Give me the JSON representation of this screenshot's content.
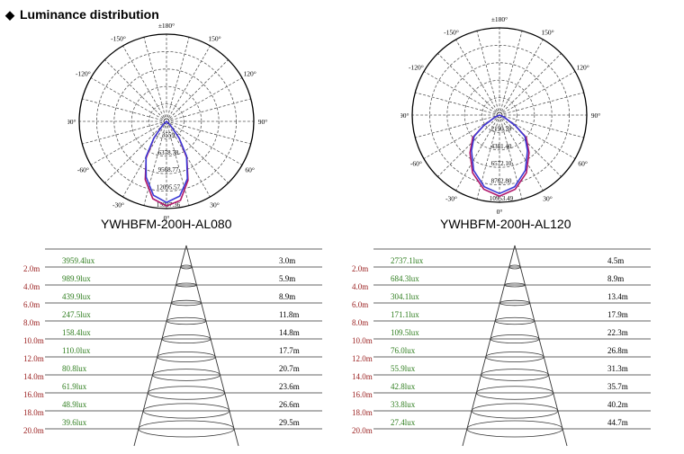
{
  "heading": {
    "bullet": "◆",
    "title": "Luminance distribution"
  },
  "chart_data": [
    {
      "type": "polar",
      "caption": "YWHBFM-200H-AL080",
      "angle_labels": [
        "±180°",
        "-150°",
        "150°",
        "-120°",
        "120°",
        "-90°",
        "90°",
        "-60°",
        "60°",
        "-30°",
        "30°",
        "0°"
      ],
      "radial_labels": [
        "3559",
        "6378.78",
        "9568.77",
        "12095.57",
        "15937.36"
      ],
      "series": [
        {
          "color": "#b0186a",
          "points": [
            [
              -37,
              0.24
            ],
            [
              -29,
              0.48
            ],
            [
              -20,
              0.71
            ],
            [
              -10,
              0.9
            ],
            [
              0,
              0.97
            ],
            [
              10,
              0.92
            ],
            [
              20,
              0.72
            ],
            [
              29,
              0.48
            ],
            [
              37,
              0.24
            ],
            [
              45,
              0.06
            ],
            [
              -45,
              0.06
            ]
          ]
        },
        {
          "color": "#3a3ad6",
          "points": [
            [
              -37,
              0.24
            ],
            [
              -30,
              0.47
            ],
            [
              -20,
              0.68
            ],
            [
              -10,
              0.86
            ],
            [
              0,
              0.93
            ],
            [
              10,
              0.87
            ],
            [
              20,
              0.7
            ],
            [
              30,
              0.46
            ],
            [
              37,
              0.24
            ],
            [
              45,
              0.06
            ],
            [
              -45,
              0.06
            ]
          ]
        }
      ]
    },
    {
      "type": "polar",
      "caption": "YWHBFM-200H-AL120",
      "angle_labels": [
        "±180°",
        "-150°",
        "150°",
        "-120°",
        "120°",
        "-90°",
        "90°",
        "-60°",
        "60°",
        "-30°",
        "30°",
        "0°"
      ],
      "radial_labels": [
        "2190.70",
        "4381.40",
        "6572.10",
        "8762.80",
        "10953.49"
      ],
      "series": [
        {
          "color": "#b0186a",
          "points": [
            [
              -56,
              0.22
            ],
            [
              -50,
              0.4
            ],
            [
              -38,
              0.55
            ],
            [
              -25,
              0.73
            ],
            [
              -12,
              0.87
            ],
            [
              0,
              0.93
            ],
            [
              12,
              0.87
            ],
            [
              25,
              0.73
            ],
            [
              38,
              0.55
            ],
            [
              50,
              0.4
            ],
            [
              56,
              0.22
            ],
            [
              65,
              0.06
            ],
            [
              -65,
              0.06
            ]
          ]
        },
        {
          "color": "#3a3ad6",
          "points": [
            [
              -56,
              0.22
            ],
            [
              -50,
              0.38
            ],
            [
              -38,
              0.52
            ],
            [
              -25,
              0.7
            ],
            [
              -12,
              0.84
            ],
            [
              0,
              0.9
            ],
            [
              12,
              0.84
            ],
            [
              25,
              0.7
            ],
            [
              38,
              0.52
            ],
            [
              50,
              0.38
            ],
            [
              56,
              0.22
            ],
            [
              65,
              0.06
            ],
            [
              -65,
              0.06
            ]
          ]
        }
      ]
    },
    {
      "type": "table",
      "distances": [
        "2.0m",
        "4.0m",
        "6.0m",
        "8.0m",
        "10.0m",
        "12.0m",
        "14.0m",
        "16.0m",
        "18.0m",
        "20.0m"
      ],
      "lux": [
        "3959.4lux",
        "989.9lux",
        "439.9lux",
        "247.5lux",
        "158.4lux",
        "110.0lux",
        "80.8lux",
        "61.9lux",
        "48.9lux",
        "39.6lux"
      ],
      "diameters": [
        "3.0m",
        "5.9m",
        "8.9m",
        "11.8m",
        "14.8m",
        "17.7m",
        "20.7m",
        "23.6m",
        "26.6m",
        "29.5m"
      ]
    },
    {
      "type": "table",
      "distances": [
        "2.0m",
        "4.0m",
        "6.0m",
        "8.0m",
        "10.0m",
        "12.0m",
        "14.0m",
        "16.0m",
        "18.0m",
        "20.0m"
      ],
      "lux": [
        "2737.1lux",
        "684.3lux",
        "304.1lux",
        "171.1lux",
        "109.5lux",
        "76.0lux",
        "55.9lux",
        "42.8lux",
        "33.8lux",
        "27.4lux"
      ],
      "diameters": [
        "4.5m",
        "8.9m",
        "13.4m",
        "17.9m",
        "22.3m",
        "26.8m",
        "31.3m",
        "35.7m",
        "40.2m",
        "44.7m"
      ]
    }
  ]
}
